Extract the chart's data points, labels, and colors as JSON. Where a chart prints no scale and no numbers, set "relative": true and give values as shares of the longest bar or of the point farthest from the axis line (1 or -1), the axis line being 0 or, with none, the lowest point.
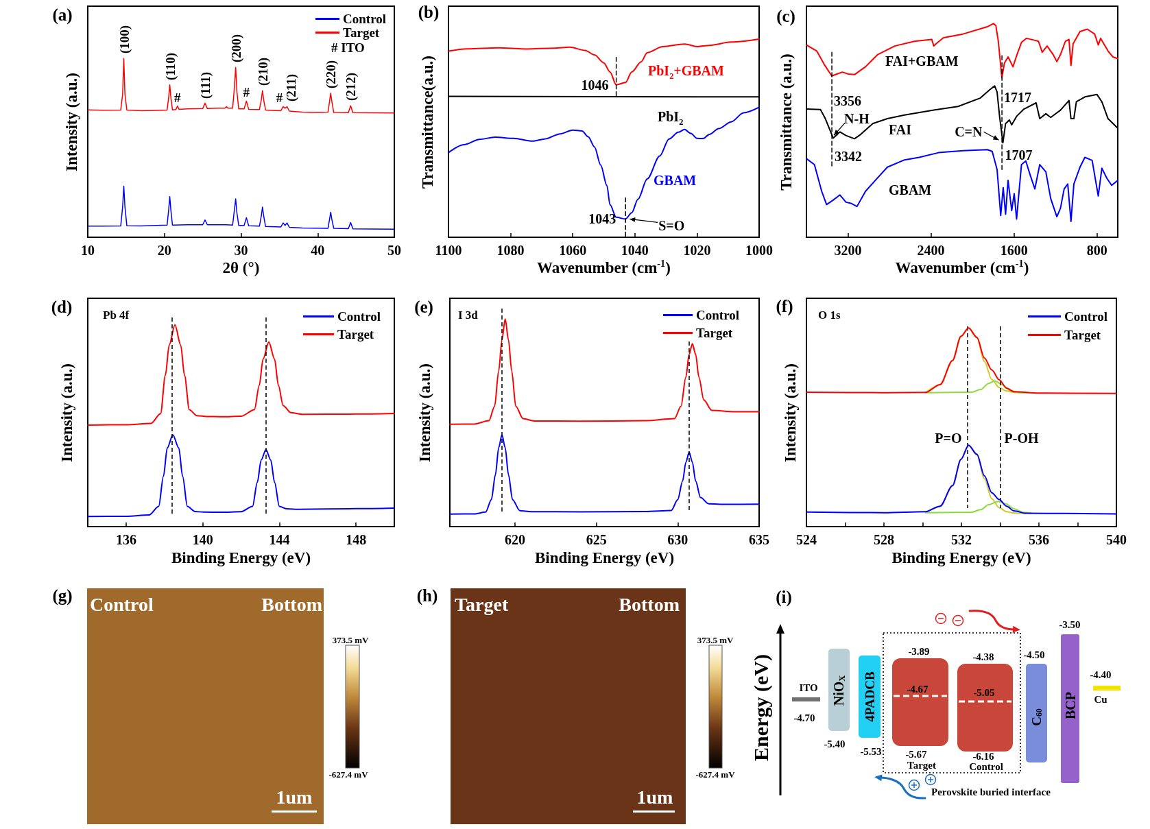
{
  "chart_data": [
    {
      "type": "line",
      "title": "(a)",
      "xlabel": "2θ (°)",
      "ylabel": "Intensity (a.u.)",
      "relative": true,
      "xlim": [
        10,
        50
      ],
      "xticks": [
        10,
        20,
        30,
        40,
        50
      ],
      "legend": "top right",
      "series": [
        {
          "name": "Control",
          "color": "#0000ff",
          "x": [
            10,
            12,
            14.3,
            14.55,
            14.7,
            14.85,
            15.1,
            17,
            19,
            20.35,
            20.55,
            20.7,
            20.85,
            21.05,
            23,
            25,
            25.3,
            25.6,
            28,
            28.9,
            29.1,
            29.3,
            29.45,
            29.7,
            30.4,
            30.7,
            31,
            32.4,
            32.65,
            32.8,
            32.95,
            33.2,
            35.2,
            35.5,
            35.75,
            36,
            36.3,
            38,
            41.35,
            41.55,
            41.7,
            41.85,
            42.1,
            44,
            44.3,
            44.6,
            47,
            50
          ],
          "values": [
            0.062,
            0.062,
            0.063,
            0.17,
            0.286,
            0.17,
            0.064,
            0.063,
            0.066,
            0.068,
            0.15,
            0.227,
            0.15,
            0.068,
            0.07,
            0.07,
            0.097,
            0.07,
            0.07,
            0.068,
            0.14,
            0.215,
            0.14,
            0.066,
            0.066,
            0.109,
            0.064,
            0.062,
            0.12,
            0.169,
            0.12,
            0.06,
            0.058,
            0.08,
            0.066,
            0.08,
            0.056,
            0.052,
            0.05,
            0.1,
            0.14,
            0.1,
            0.05,
            0.048,
            0.082,
            0.047,
            0.046,
            0.045
          ]
        },
        {
          "name": "Target",
          "color": "#ff0000",
          "x": [
            10,
            12,
            14.3,
            14.55,
            14.7,
            14.85,
            15.1,
            17,
            19,
            20.35,
            20.55,
            20.7,
            20.85,
            21.05,
            21.5,
            21.7,
            21.9,
            23,
            25,
            25.3,
            25.6,
            27,
            27.9,
            28.1,
            28.3,
            28.9,
            29.1,
            29.3,
            29.45,
            29.7,
            30.4,
            30.7,
            31,
            32.4,
            32.65,
            32.8,
            32.95,
            33.2,
            34,
            35.2,
            35.5,
            35.75,
            36,
            36.3,
            38,
            40,
            41.35,
            41.55,
            41.7,
            41.85,
            42.1,
            44,
            44.3,
            44.6,
            47,
            50
          ],
          "values": [
            0.713,
            0.711,
            0.712,
            0.8,
            1.0,
            0.8,
            0.712,
            0.708,
            0.71,
            0.712,
            0.78,
            0.853,
            0.78,
            0.713,
            0.715,
            0.734,
            0.716,
            0.718,
            0.72,
            0.75,
            0.72,
            0.722,
            0.722,
            0.731,
            0.722,
            0.722,
            0.82,
            0.951,
            0.82,
            0.718,
            0.718,
            0.762,
            0.716,
            0.715,
            0.77,
            0.82,
            0.77,
            0.712,
            0.71,
            0.708,
            0.731,
            0.722,
            0.731,
            0.706,
            0.7,
            0.698,
            0.7,
            0.76,
            0.806,
            0.76,
            0.698,
            0.697,
            0.736,
            0.697,
            0.696,
            0.695
          ]
        }
      ],
      "annotations": [
        {
          "text": "(100)",
          "x": 14.7,
          "y": 1.0
        },
        {
          "text": "(110)",
          "x": 20.7,
          "y": 0.853
        },
        {
          "text": "#",
          "x": 21.7,
          "y": 0.734
        },
        {
          "text": "(111)",
          "x": 25.3,
          "y": 0.75
        },
        {
          "text": "(200)",
          "x": 29.3,
          "y": 0.951
        },
        {
          "text": "#",
          "x": 30.7,
          "y": 0.762
        },
        {
          "text": "(210)",
          "x": 32.8,
          "y": 0.82
        },
        {
          "text": "#",
          "x": 35.0,
          "y": 0.731
        },
        {
          "text": "(211)",
          "x": 36.5,
          "y": 0.731
        },
        {
          "text": "(220)",
          "x": 41.7,
          "y": 0.806
        },
        {
          "text": "(212)",
          "x": 44.3,
          "y": 0.736
        },
        "# ITO"
      ]
    },
    {
      "type": "line",
      "title": "(b)",
      "xlabel": "Wavenumber (cm$^{-1}$)",
      "ylabel": "Transmittance(a.u.)",
      "relative": true,
      "xlim": [
        1100,
        1000
      ],
      "xticks": [
        1100,
        1080,
        1060,
        1040,
        1020,
        1000
      ],
      "series": [
        {
          "name": "PbI$_{2}$+GBAM",
          "color": "#ff0000",
          "x": [
            1100,
            1094,
            1084,
            1075,
            1066,
            1061,
            1056,
            1053,
            1050,
            1048,
            1046,
            1043,
            1041,
            1038,
            1036,
            1031,
            1024,
            1020,
            1016,
            1009,
            1000
          ],
          "values": [
            0.939,
            0.951,
            0.956,
            0.95,
            0.954,
            0.959,
            0.943,
            0.92,
            0.88,
            0.834,
            0.769,
            0.781,
            0.834,
            0.885,
            0.932,
            0.962,
            0.975,
            0.962,
            0.968,
            0.985,
            1.0
          ]
        },
        {
          "name": "PbI$_{2}$",
          "color": "#000000",
          "x": [
            1100,
            1000
          ],
          "values": [
            0.711,
            0.708
          ]
        },
        {
          "name": "GBAM",
          "color": "#0000ff",
          "x": [
            1100,
            1095,
            1090,
            1085,
            1079,
            1073,
            1069,
            1064,
            1060,
            1057,
            1055,
            1053,
            1051,
            1049,
            1048,
            1046,
            1043,
            1041,
            1039,
            1036,
            1032,
            1029,
            1026,
            1024,
            1022,
            1020,
            1018,
            1016,
            1013,
            1009,
            1005,
            1000
          ],
          "values": [
            0.427,
            0.467,
            0.494,
            0.505,
            0.499,
            0.485,
            0.496,
            0.522,
            0.541,
            0.536,
            0.507,
            0.456,
            0.364,
            0.261,
            0.164,
            0.101,
            0.092,
            0.124,
            0.192,
            0.295,
            0.41,
            0.496,
            0.53,
            0.544,
            0.524,
            0.499,
            0.498,
            0.519,
            0.548,
            0.582,
            0.628,
            0.656
          ]
        },
        {
          "color": "#000000",
          "line_style": "dashed",
          "x": [
            1046,
            1046
          ],
          "values": [
            0.714,
            0.914
          ]
        },
        {
          "color": "#000000",
          "line_style": "dashed",
          "x": [
            1043,
            1043
          ],
          "values": [
            0.005,
            0.21
          ]
        }
      ],
      "annotations": [
        {
          "text": "1046",
          "x": 1046,
          "y": 0.769
        },
        {
          "text": "1043",
          "x": 1043,
          "y": 0.092
        },
        {
          "text": "S=O",
          "x": 1043,
          "y": 0.092
        }
      ]
    },
    {
      "type": "line",
      "title": "(c)",
      "xlabel": "Wavenumber (cm$^{-1}$)",
      "ylabel": "Transmittance (a.u.)",
      "relative": true,
      "xlim": [
        3600,
        600
      ],
      "xticks": [
        3200,
        2400,
        1600,
        800
      ],
      "series": [
        {
          "name": "FAI+GBAM",
          "color": "#ff0000",
          "x": [
            3600,
            3501,
            3430,
            3356,
            3289,
            3254,
            3195,
            3137,
            3031,
            2913,
            2749,
            2561,
            2392,
            2373,
            2350,
            2279,
            2092,
            1857,
            1798,
            1775,
            1751,
            1717,
            1692,
            1657,
            1634,
            1610,
            1575,
            1528,
            1481,
            1410,
            1364,
            1328,
            1281,
            1223,
            1187,
            1152,
            1105,
            1070,
            1051,
            1030,
            964,
            894,
            823,
            788,
            765,
            694,
            647,
            600
          ],
          "values": [
            0.9,
            0.872,
            0.81,
            0.755,
            0.767,
            0.773,
            0.764,
            0.761,
            0.798,
            0.855,
            0.895,
            0.917,
            0.926,
            0.895,
            0.906,
            0.934,
            0.951,
            0.985,
            1.0,
            0.991,
            0.917,
            0.747,
            0.815,
            0.844,
            0.822,
            0.798,
            0.849,
            0.912,
            0.931,
            0.923,
            0.917,
            0.866,
            0.895,
            0.855,
            0.822,
            0.855,
            0.917,
            0.926,
            0.804,
            0.906,
            0.963,
            0.974,
            0.951,
            0.9,
            0.931,
            0.872,
            0.844,
            0.836
          ]
        },
        {
          "name": "FAI",
          "color": "#000000",
          "x": [
            3600,
            3465,
            3418,
            3342,
            3277,
            3219,
            3137,
            3078,
            2961,
            2820,
            2655,
            2373,
            2139,
            1927,
            1833,
            1786,
            1763,
            1739,
            1707,
            1681,
            1645,
            1622,
            1575,
            1504,
            1387,
            1352,
            1293,
            1246,
            1152,
            1070,
            1051,
            1023,
            999,
            917,
            800,
            753,
            694,
            600
          ],
          "values": [
            0.6,
            0.598,
            0.555,
            0.464,
            0.493,
            0.476,
            0.461,
            0.481,
            0.532,
            0.555,
            0.572,
            0.595,
            0.612,
            0.651,
            0.691,
            0.708,
            0.68,
            0.566,
            0.442,
            0.532,
            0.549,
            0.526,
            0.566,
            0.6,
            0.629,
            0.555,
            0.578,
            0.561,
            0.595,
            0.64,
            0.555,
            0.555,
            0.634,
            0.657,
            0.668,
            0.634,
            0.555,
            0.51
          ]
        },
        {
          "name": "GBAM",
          "color": "#0000ff",
          "x": [
            3600,
            3523,
            3453,
            3406,
            3348,
            3277,
            3219,
            3172,
            3113,
            3031,
            2937,
            2820,
            2655,
            2514,
            2326,
            2092,
            1857,
            1810,
            1763,
            1728,
            1704,
            1681,
            1657,
            1622,
            1598,
            1575,
            1528,
            1486,
            1446,
            1399,
            1352,
            1293,
            1246,
            1187,
            1152,
            1117,
            1082,
            1051,
            1023,
            964,
            917,
            847,
            788,
            753,
            706,
            659,
            600
          ],
          "values": [
            0.368,
            0.34,
            0.215,
            0.153,
            0.172,
            0.198,
            0.164,
            0.159,
            0.144,
            0.215,
            0.266,
            0.328,
            0.362,
            0.374,
            0.396,
            0.405,
            0.41,
            0.402,
            0.317,
            0.102,
            0.232,
            0.108,
            0.266,
            0.125,
            0.204,
            0.085,
            0.34,
            0.357,
            0.294,
            0.226,
            0.34,
            0.306,
            0.181,
            0.096,
            0.136,
            0.226,
            0.249,
            0.074,
            0.249,
            0.328,
            0.374,
            0.36,
            0.193,
            0.323,
            0.277,
            0.243,
            0.266
          ]
        },
        {
          "color": "#000000",
          "line_style": "dashed",
          "x": [
            3355,
            3355
          ],
          "values": [
            0.334,
            0.866
          ]
        },
        {
          "color": "#000000",
          "line_style": "dashed",
          "x": [
            1716,
            1716
          ],
          "values": [
            0.317,
            0.855
          ]
        }
      ],
      "annotations": [
        {
          "text": "3356",
          "x": 3356,
          "y": 0.755
        },
        {
          "text": "3342",
          "x": 3342,
          "y": 0.464
        },
        {
          "text": "N-H",
          "x": 3342,
          "y": 0.464
        },
        {
          "text": "1717",
          "x": 1717,
          "y": 0.747
        },
        {
          "text": "1707",
          "x": 1707,
          "y": 0.442
        },
        {
          "text": "C=N",
          "x": 1707,
          "y": 0.442
        }
      ]
    },
    {
      "type": "line",
      "title": "(d)",
      "xlabel": "Binding Energy (eV)",
      "ylabel": "Intensity (a.u.)",
      "relative": true,
      "xlim": [
        134,
        150
      ],
      "xticks": [
        136,
        140,
        144,
        148
      ],
      "legend": "top right",
      "series": [
        {
          "name": "Control",
          "color": "#0000ff",
          "x": [
            134,
            136,
            137.2,
            137.7,
            137.95,
            138.15,
            138.44,
            138.75,
            138.95,
            139.2,
            139.6,
            140,
            141,
            142,
            142.6,
            142.85,
            143.05,
            143.3,
            143.55,
            143.75,
            144,
            144.4,
            145,
            148,
            150
          ],
          "values": [
            0.05,
            0.051,
            0.058,
            0.1,
            0.25,
            0.39,
            0.455,
            0.39,
            0.25,
            0.1,
            0.075,
            0.072,
            0.071,
            0.074,
            0.1,
            0.22,
            0.33,
            0.382,
            0.33,
            0.22,
            0.1,
            0.088,
            0.086,
            0.089,
            0.092
          ]
        },
        {
          "name": "Target",
          "color": "#ff0000",
          "x": [
            134,
            136,
            137.3,
            137.8,
            138.05,
            138.25,
            138.55,
            138.85,
            139.05,
            139.3,
            139.7,
            140.2,
            141,
            142,
            142.7,
            142.95,
            143.15,
            143.45,
            143.75,
            143.95,
            144.2,
            144.6,
            145.2,
            148,
            150
          ],
          "values": [
            0.503,
            0.505,
            0.512,
            0.56,
            0.75,
            0.9,
            1.0,
            0.9,
            0.75,
            0.58,
            0.55,
            0.546,
            0.545,
            0.547,
            0.58,
            0.7,
            0.83,
            0.915,
            0.83,
            0.7,
            0.6,
            0.565,
            0.557,
            0.558,
            0.561
          ]
        }
      ],
      "ref_lines": [
        {
          "axis": "x",
          "value": 138.4,
          "color": "#000000",
          "line_style": "dashed"
        },
        {
          "axis": "x",
          "value": 143.3,
          "color": "#000000",
          "line_style": "dashed"
        }
      ],
      "annotations": [
        "Pb 4f"
      ]
    },
    {
      "type": "line",
      "title": "(e)",
      "xlabel": "Binding Energy (eV)",
      "ylabel": "Intensity (a.u.)",
      "relative": true,
      "xlim": [
        616,
        635
      ],
      "xticks": [
        620,
        625,
        630,
        635
      ],
      "legend": "top right",
      "series": [
        {
          "name": "Control",
          "color": "#0000ff",
          "x": [
            616,
            617.5,
            618.2,
            618.55,
            618.8,
            619,
            619.2,
            619.4,
            619.6,
            619.85,
            620.3,
            621,
            624,
            628,
            629.6,
            630,
            630.3,
            630.5,
            630.7,
            630.9,
            631.1,
            631.4,
            631.9,
            633,
            635
          ],
          "values": [
            0.06,
            0.061,
            0.07,
            0.13,
            0.25,
            0.38,
            0.442,
            0.38,
            0.25,
            0.13,
            0.077,
            0.072,
            0.071,
            0.073,
            0.078,
            0.13,
            0.22,
            0.31,
            0.358,
            0.31,
            0.22,
            0.14,
            0.11,
            0.107,
            0.108
          ]
        },
        {
          "name": "Target",
          "color": "#ff0000",
          "x": [
            616,
            617.5,
            618.4,
            618.75,
            619,
            619.2,
            619.4,
            619.6,
            619.8,
            620.05,
            620.5,
            621.2,
            624,
            628,
            629.8,
            630.2,
            630.5,
            630.7,
            630.9,
            631.1,
            631.3,
            631.6,
            632.1,
            633.5,
            635
          ],
          "values": [
            0.493,
            0.494,
            0.51,
            0.58,
            0.75,
            0.9,
            1.0,
            0.9,
            0.75,
            0.58,
            0.52,
            0.509,
            0.508,
            0.51,
            0.52,
            0.58,
            0.72,
            0.83,
            0.881,
            0.83,
            0.72,
            0.61,
            0.56,
            0.553,
            0.553
          ]
        }
      ],
      "ref_lines": [
        {
          "axis": "x",
          "value": 619.2,
          "color": "#000000",
          "line_style": "dashed"
        },
        {
          "axis": "x",
          "value": 630.7,
          "color": "#000000",
          "line_style": "dashed"
        }
      ],
      "annotations": [
        "I 3d"
      ]
    },
    {
      "type": "line",
      "title": "(f)",
      "xlabel": "Binding Energy (eV)",
      "ylabel": "Intensity (a.u.)",
      "relative": true,
      "xlim": [
        524,
        540
      ],
      "xticks": [
        524,
        528,
        532,
        536,
        540,
        {
          "value": 526,
          "label": null
        },
        {
          "value": 530,
          "label": null
        },
        {
          "value": 534,
          "label": null
        },
        {
          "value": 538,
          "label": null
        }
      ],
      "legend": "top right",
      "series": [
        {
          "color": "#d2c82a",
          "x": [
            530.15,
            530.9,
            531.54,
            531.98,
            532.37,
            532.8,
            533.19,
            533.57,
            533.95,
            534.33,
            534.71,
            535.5
          ],
          "values": [
            0.674,
            0.713,
            0.835,
            0.957,
            1.0,
            0.95,
            0.83,
            0.74,
            0.7,
            0.682,
            0.675,
            0.673
          ]
        },
        {
          "color": "#8fd93a",
          "x": [
            530.15,
            532.5,
            533.0,
            533.4,
            533.72,
            534.1,
            534.5,
            535.0,
            535.5
          ],
          "values": [
            0.674,
            0.676,
            0.69,
            0.72,
            0.733,
            0.715,
            0.685,
            0.674,
            0.673
          ]
        },
        {
          "color": "#d2c82a",
          "x": [
            530.15,
            530.9,
            531.54,
            531.98,
            532.37,
            532.8,
            533.19,
            533.57,
            533.95,
            534.33,
            534.71,
            535.3
          ],
          "values": [
            0.073,
            0.1,
            0.205,
            0.338,
            0.408,
            0.36,
            0.24,
            0.14,
            0.095,
            0.075,
            0.068,
            0.066
          ]
        },
        {
          "color": "#8fd93a",
          "x": [
            530.15,
            532.5,
            533.0,
            533.4,
            533.89,
            534.3,
            534.7,
            535.2,
            535.6
          ],
          "values": [
            0.07,
            0.072,
            0.085,
            0.11,
            0.127,
            0.115,
            0.09,
            0.072,
            0.068
          ]
        },
        {
          "name": "Control",
          "color": "#0000ff",
          "x": [
            524,
            528,
            530.15,
            530.9,
            531.54,
            531.98,
            532.37,
            532.8,
            533.19,
            533.57,
            533.95,
            534.33,
            534.71,
            535.34,
            540
          ],
          "values": [
            0.073,
            0.07,
            0.075,
            0.103,
            0.206,
            0.339,
            0.41,
            0.364,
            0.255,
            0.17,
            0.136,
            0.103,
            0.079,
            0.067,
            0.064
          ]
        },
        {
          "name": "Target",
          "color": "#ff0000",
          "x": [
            524,
            528,
            530.15,
            530.9,
            531.54,
            531.98,
            532.37,
            532.8,
            533.19,
            533.57,
            533.95,
            534.33,
            534.71,
            536,
            540
          ],
          "values": [
            0.676,
            0.674,
            0.675,
            0.715,
            0.836,
            0.958,
            1.0,
            0.952,
            0.848,
            0.788,
            0.739,
            0.697,
            0.679,
            0.672,
            0.67
          ]
        }
      ],
      "ref_lines": [
        {
          "axis": "x",
          "value": 532.3,
          "label": "P=O",
          "color": "#000000",
          "line_style": "dashed"
        },
        {
          "axis": "x",
          "value": 534.0,
          "label": "P-OH",
          "color": "#000000",
          "line_style": "dashed"
        }
      ],
      "annotations": [
        "O 1s"
      ]
    },
    {
      "type": "other",
      "title": "(g)",
      "annotations": [
        "Control",
        "Bottom",
        "1um",
        "373.5 mV",
        "-627.4 mV"
      ]
    },
    {
      "type": "other",
      "title": "(h)",
      "annotations": [
        "Target",
        "Bottom",
        "1um",
        "373.5 mV",
        "-627.4 mV"
      ]
    },
    {
      "type": "other",
      "title": "(i)",
      "ylabel": "Energy (eV)",
      "annotations": [
        "ITO",
        "-4.70",
        "NiO$_{X}$",
        "-5.40",
        "4PADCB",
        "-5.53",
        "-3.89",
        "-4.67",
        "-5.67",
        "Target",
        "-4.38",
        "-5.05",
        "-6.16",
        "Control",
        "-4.50",
        "C$_{60}$",
        "-3.50",
        "BCP",
        "-4.40",
        "Cu",
        "Perovskite buried interface"
      ]
    }
  ]
}
